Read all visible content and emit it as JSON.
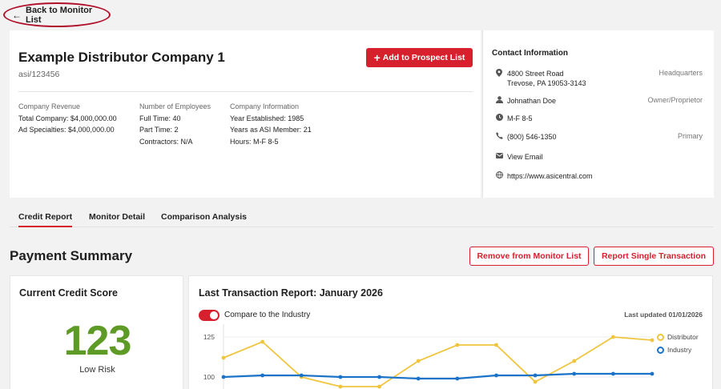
{
  "nav": {
    "back_label": "Back to Monitor List",
    "back_arrow": "←"
  },
  "company": {
    "name": "Example Distributor Company 1",
    "id": "asi/123456",
    "add_button_label": "Add to Prospect List",
    "revenue": {
      "heading": "Company Revenue",
      "total": "Total Company: $4,000,000.00",
      "ad_specialties": "Ad Specialties: $4,000,000.00"
    },
    "employees": {
      "heading": "Number of Employees",
      "full_time": "Full Time: 40",
      "part_time": "Part Time: 2",
      "contractors": "Contractors: N/A"
    },
    "info": {
      "heading": "Company Information",
      "established": "Year Established: 1985",
      "member_years": "Years as ASI Member: 21",
      "hours": "Hours: M-F 8-5"
    }
  },
  "contact": {
    "title": "Contact Information",
    "address_line1": "4800 Street Road",
    "address_line2": "Trevose, PA 19053-3143",
    "address_tag": "Headquarters",
    "person": "Johnathan Doe",
    "person_tag": "Owner/Proprietor",
    "hours": "M-F 8-5",
    "phone": "(800) 546-1350",
    "phone_tag": "Primary",
    "email_link": "View Email",
    "website": "https://www.asicentral.com"
  },
  "tabs": [
    "Credit Report",
    "Monitor Detail",
    "Comparison Analysis"
  ],
  "payment_summary": {
    "title": "Payment Summary",
    "remove_button": "Remove from Monitor List",
    "report_button": "Report Single Transaction"
  },
  "credit_score": {
    "title": "Current Credit Score",
    "value": "123",
    "label": "Low Risk",
    "color": "#5e9a26"
  },
  "transaction_report": {
    "title": "Last Transaction Report: January 2026",
    "toggle_label": "Compare to the Industry",
    "updated": "Last updated 01/01/2026"
  },
  "colors": {
    "accent": "#d7202d",
    "distributor": "#f0c53e",
    "industry": "#1a73c8"
  },
  "chart_data": {
    "type": "line",
    "y_ticks": [
      100,
      125
    ],
    "ylim": [
      88,
      133
    ],
    "series": [
      {
        "name": "Distributor",
        "color": "#f0c53e",
        "values": [
          112,
          122,
          100,
          94,
          94,
          110,
          120,
          120,
          97,
          110,
          125,
          123
        ]
      },
      {
        "name": "Industry",
        "color": "#1a73c8",
        "values": [
          100,
          101,
          101,
          100,
          100,
          99,
          99,
          101,
          101,
          102,
          102,
          102
        ]
      }
    ]
  }
}
